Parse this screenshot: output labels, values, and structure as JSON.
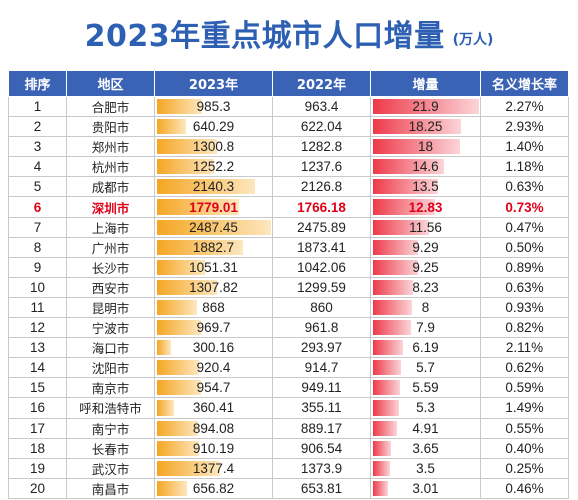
{
  "header": {
    "title": "2023年重点城市人口增量",
    "unit": "(万人)"
  },
  "table": {
    "columns": [
      "排序",
      "地区",
      "2023年",
      "2022年",
      "增量",
      "名义增长率"
    ],
    "highlight_rank": "6",
    "rows": [
      {
        "rank": "1",
        "city": "合肥市",
        "y2023": "985.3",
        "y2022": "963.4",
        "inc": "21.9",
        "rate": "2.27%"
      },
      {
        "rank": "2",
        "city": "贵阳市",
        "y2023": "640.29",
        "y2022": "622.04",
        "inc": "18.25",
        "rate": "2.93%"
      },
      {
        "rank": "3",
        "city": "郑州市",
        "y2023": "1300.8",
        "y2022": "1282.8",
        "inc": "18",
        "rate": "1.40%"
      },
      {
        "rank": "4",
        "city": "杭州市",
        "y2023": "1252.2",
        "y2022": "1237.6",
        "inc": "14.6",
        "rate": "1.18%"
      },
      {
        "rank": "5",
        "city": "成都市",
        "y2023": "2140.3",
        "y2022": "2126.8",
        "inc": "13.5",
        "rate": "0.63%"
      },
      {
        "rank": "6",
        "city": "深圳市",
        "y2023": "1779.01",
        "y2022": "1766.18",
        "inc": "12.83",
        "rate": "0.73%"
      },
      {
        "rank": "7",
        "city": "上海市",
        "y2023": "2487.45",
        "y2022": "2475.89",
        "inc": "11.56",
        "rate": "0.47%"
      },
      {
        "rank": "8",
        "city": "广州市",
        "y2023": "1882.7",
        "y2022": "1873.41",
        "inc": "9.29",
        "rate": "0.50%"
      },
      {
        "rank": "9",
        "city": "长沙市",
        "y2023": "1051.31",
        "y2022": "1042.06",
        "inc": "9.25",
        "rate": "0.89%"
      },
      {
        "rank": "10",
        "city": "西安市",
        "y2023": "1307.82",
        "y2022": "1299.59",
        "inc": "8.23",
        "rate": "0.63%"
      },
      {
        "rank": "11",
        "city": "昆明市",
        "y2023": "868",
        "y2022": "860",
        "inc": "8",
        "rate": "0.93%"
      },
      {
        "rank": "12",
        "city": "宁波市",
        "y2023": "969.7",
        "y2022": "961.8",
        "inc": "7.9",
        "rate": "0.82%"
      },
      {
        "rank": "13",
        "city": "海口市",
        "y2023": "300.16",
        "y2022": "293.97",
        "inc": "6.19",
        "rate": "2.11%"
      },
      {
        "rank": "14",
        "city": "沈阳市",
        "y2023": "920.4",
        "y2022": "914.7",
        "inc": "5.7",
        "rate": "0.62%"
      },
      {
        "rank": "15",
        "city": "南京市",
        "y2023": "954.7",
        "y2022": "949.11",
        "inc": "5.59",
        "rate": "0.59%"
      },
      {
        "rank": "16",
        "city": "呼和浩特市",
        "y2023": "360.41",
        "y2022": "355.11",
        "inc": "5.3",
        "rate": "1.49%"
      },
      {
        "rank": "17",
        "city": "南宁市",
        "y2023": "894.08",
        "y2022": "889.17",
        "inc": "4.91",
        "rate": "0.55%"
      },
      {
        "rank": "18",
        "city": "长春市",
        "y2023": "910.19",
        "y2022": "906.54",
        "inc": "3.65",
        "rate": "0.40%"
      },
      {
        "rank": "19",
        "city": "武汉市",
        "y2023": "1377.4",
        "y2022": "1373.9",
        "inc": "3.5",
        "rate": "0.25%"
      },
      {
        "rank": "20",
        "city": "南昌市",
        "y2023": "656.82",
        "y2022": "653.81",
        "inc": "3.01",
        "rate": "0.46%"
      }
    ]
  },
  "chart_data": {
    "type": "table",
    "title": "2023年重点城市人口增量",
    "unit": "万人",
    "columns": [
      "排序",
      "地区",
      "2023年",
      "2022年",
      "增量",
      "名义增长率"
    ],
    "categories": [
      "合肥市",
      "贵阳市",
      "郑州市",
      "杭州市",
      "成都市",
      "深圳市",
      "上海市",
      "广州市",
      "长沙市",
      "西安市",
      "昆明市",
      "宁波市",
      "海口市",
      "沈阳市",
      "南京市",
      "呼和浩特市",
      "南宁市",
      "长春市",
      "武汉市",
      "南昌市"
    ],
    "series": [
      {
        "name": "2023年",
        "values": [
          985.3,
          640.29,
          1300.8,
          1252.2,
          2140.3,
          1779.01,
          2487.45,
          1882.7,
          1051.31,
          1307.82,
          868,
          969.7,
          300.16,
          920.4,
          954.7,
          360.41,
          894.08,
          910.19,
          1377.4,
          656.82
        ]
      },
      {
        "name": "2022年",
        "values": [
          963.4,
          622.04,
          1282.8,
          1237.6,
          2126.8,
          1766.18,
          2475.89,
          1873.41,
          1042.06,
          1299.59,
          860,
          961.8,
          293.97,
          914.7,
          949.11,
          355.11,
          889.17,
          906.54,
          1373.9,
          653.81
        ]
      },
      {
        "name": "增量",
        "values": [
          21.9,
          18.25,
          18,
          14.6,
          13.5,
          12.83,
          11.56,
          9.29,
          9.25,
          8.23,
          8,
          7.9,
          6.19,
          5.7,
          5.59,
          5.3,
          4.91,
          3.65,
          3.5,
          3.01
        ]
      },
      {
        "name": "名义增长率",
        "values": [
          2.27,
          2.93,
          1.4,
          1.18,
          0.63,
          0.73,
          0.47,
          0.5,
          0.89,
          0.63,
          0.93,
          0.82,
          2.11,
          0.62,
          0.59,
          1.49,
          0.55,
          0.4,
          0.25,
          0.46
        ]
      }
    ],
    "colors": {
      "header": "#3b63b5",
      "bar_2023": "#f5a623",
      "bar_increment": "#ee3a4a",
      "highlight_text": "#e0001a",
      "title": "#2d5fb3"
    }
  }
}
